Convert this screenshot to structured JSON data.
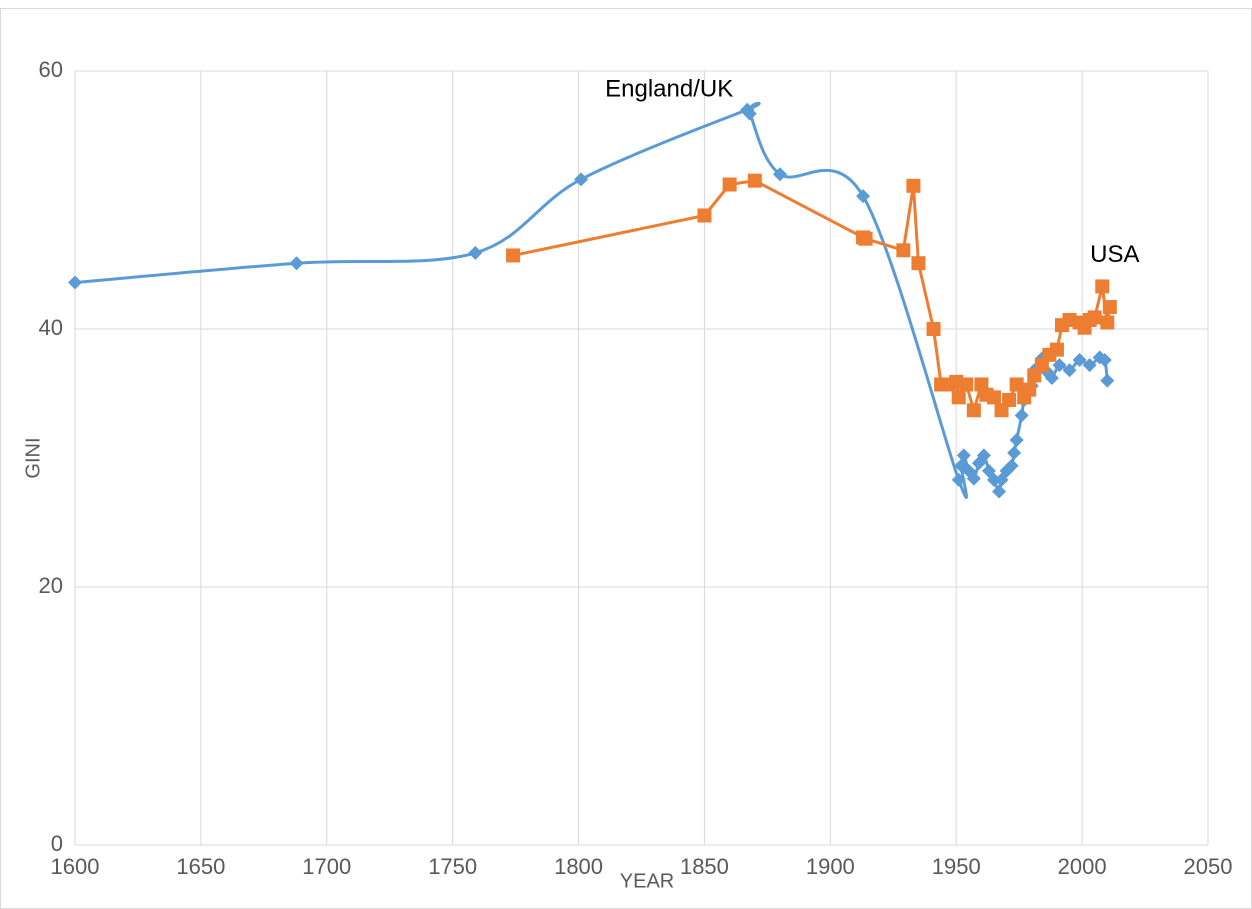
{
  "chart_data": {
    "type": "line",
    "x_label": "YEAR",
    "y_label": "GINI",
    "xlim": [
      1600,
      2050
    ],
    "xticks": [
      1600,
      1650,
      1700,
      1750,
      1800,
      1850,
      1900,
      1950,
      2000,
      2050
    ],
    "ylim": [
      0,
      60
    ],
    "yticks": [
      0,
      20,
      40,
      60
    ],
    "grid": true,
    "annotations": [
      {
        "text": "England/UK",
        "x": 1836,
        "y": 58.5
      },
      {
        "text": "USA",
        "x": 2013,
        "y": 45.7
      }
    ],
    "series": [
      {
        "color": "#5b9bd5",
        "marker": "diamond",
        "smooth": true,
        "x": [
          1600,
          1688,
          1759,
          1801,
          1867,
          1868,
          1880,
          1913,
          1951,
          1952,
          1953,
          1955,
          1957,
          1959,
          1961,
          1963,
          1965,
          1967,
          1968,
          1970,
          1972,
          1973,
          1974,
          1976,
          1977,
          1980,
          1981,
          1984,
          1986,
          1988,
          1991,
          1995,
          1999,
          2003,
          2007,
          2009,
          2010
        ],
        "values": [
          43.6,
          45.1,
          45.9,
          51.6,
          57.0,
          56.7,
          52.0,
          50.3,
          28.3,
          29.4,
          30.2,
          29.0,
          28.4,
          29.6,
          30.2,
          29.0,
          28.3,
          27.4,
          28.3,
          29.0,
          29.4,
          30.4,
          31.4,
          33.3,
          34.5,
          35.6,
          36.8,
          37.7,
          36.7,
          36.2,
          37.2,
          36.8,
          37.6,
          37.2,
          37.8,
          37.6,
          36.0
        ]
      },
      {
        "color": "#ed7d31",
        "marker": "square",
        "smooth": false,
        "x": [
          1774,
          1850,
          1860,
          1870,
          1913,
          1914,
          1929,
          1933,
          1935,
          1941,
          1944,
          1947,
          1950,
          1951,
          1954,
          1957,
          1960,
          1962,
          1965,
          1968,
          1971,
          1974,
          1977,
          1979,
          1981,
          1984,
          1987,
          1990,
          1992,
          1995,
          1999,
          2001,
          2003,
          2005,
          2008,
          2010,
          2011
        ],
        "values": [
          45.7,
          48.8,
          51.2,
          51.5,
          47.1,
          47.0,
          46.1,
          51.1,
          45.1,
          40.0,
          35.7,
          35.7,
          35.9,
          34.7,
          35.7,
          33.7,
          35.7,
          34.9,
          34.7,
          33.7,
          34.5,
          35.7,
          34.7,
          35.3,
          36.4,
          37.2,
          38.0,
          38.4,
          40.3,
          40.7,
          40.5,
          40.1,
          40.7,
          40.9,
          43.3,
          40.5,
          41.7
        ]
      }
    ]
  }
}
